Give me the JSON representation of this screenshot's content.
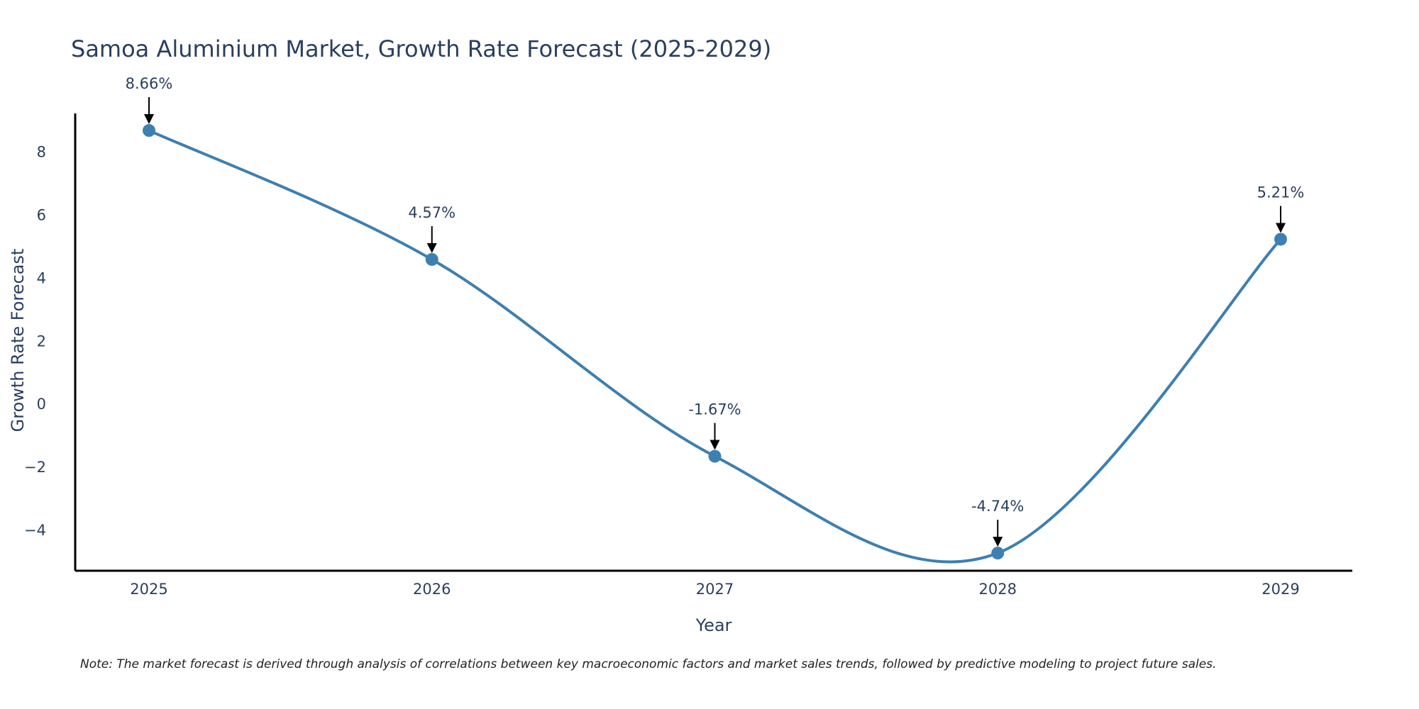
{
  "chart_data": {
    "type": "line",
    "title": "Samoa Aluminium Market, Growth Rate Forecast (2025-2029)",
    "xlabel": "Year",
    "ylabel": "Growth Rate Forecast",
    "categories": [
      "2025",
      "2026",
      "2027",
      "2028",
      "2029"
    ],
    "series": [
      {
        "name": "Growth Rate Forecast",
        "values": [
          8.66,
          4.57,
          -1.67,
          -4.74,
          5.21
        ],
        "color": "#3d7fb0"
      }
    ],
    "data_labels": [
      "8.66%",
      "4.57%",
      "-1.67%",
      "-4.74%",
      "5.21%"
    ],
    "ylim": [
      -5.3,
      9.2
    ],
    "yticks": [
      8,
      6,
      4,
      2,
      0,
      -2,
      -4
    ],
    "ytick_labels": [
      "8",
      "6",
      "4",
      "2",
      "0",
      "−2",
      "−4"
    ],
    "grid": false,
    "legend": "none",
    "line_shape": "spline"
  },
  "note": "Note: The market forecast is derived through analysis of correlations between key macroeconomic factors and market sales trends, followed by predictive modeling to project future sales."
}
